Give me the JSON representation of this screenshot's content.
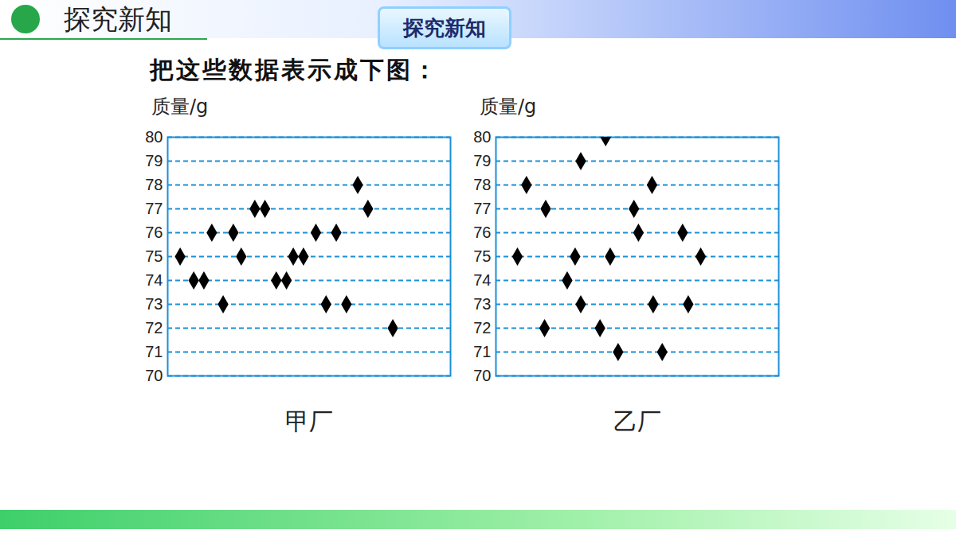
{
  "header": "探究新知",
  "badge": "探究新知",
  "caption": "把这些数据表示成下图：",
  "chart_data": [
    {
      "type": "scatter",
      "title": "甲厂",
      "y_label": "质量/g",
      "x": [
        1.1,
        2.3,
        3.2,
        3.9,
        4.9,
        5.8,
        6.5,
        7.7,
        8.6,
        9.6,
        10.5,
        11.1,
        12.0,
        13.1,
        14.0,
        14.9,
        15.8,
        16.8,
        17.7,
        19.9
      ],
      "values": [
        75,
        74,
        74,
        76,
        73,
        76,
        75,
        77,
        77,
        74,
        74,
        75,
        75,
        76,
        73,
        76,
        73,
        78,
        77,
        72
      ],
      "xlim": [
        0,
        25
      ],
      "ylim": [
        70,
        80
      ],
      "yticks": [
        70,
        71,
        72,
        73,
        74,
        75,
        76,
        77,
        78,
        79,
        80
      ],
      "grid": true,
      "tick_labels": "y",
      "marker": "diamond",
      "color": "#000000"
    },
    {
      "type": "scatter",
      "title": "乙厂",
      "y_label": "质量/g",
      "x": [
        1.9,
        2.7,
        4.3,
        4.4,
        6.3,
        7.0,
        7.5,
        7.5,
        9.2,
        9.7,
        10.1,
        10.8,
        12.2,
        12.6,
        13.8,
        13.9,
        14.7,
        16.5,
        17.0,
        18.1
      ],
      "values": [
        75,
        78,
        72,
        77,
        74,
        75,
        79,
        73,
        72,
        80,
        75,
        71,
        77,
        76,
        78,
        73,
        71,
        76,
        73,
        75
      ],
      "xlim": [
        0,
        25
      ],
      "ylim": [
        70,
        80
      ],
      "yticks": [
        70,
        71,
        72,
        73,
        74,
        75,
        76,
        77,
        78,
        79,
        80
      ],
      "grid": true,
      "tick_labels": "y",
      "marker": "diamond",
      "color": "#000000"
    }
  ]
}
